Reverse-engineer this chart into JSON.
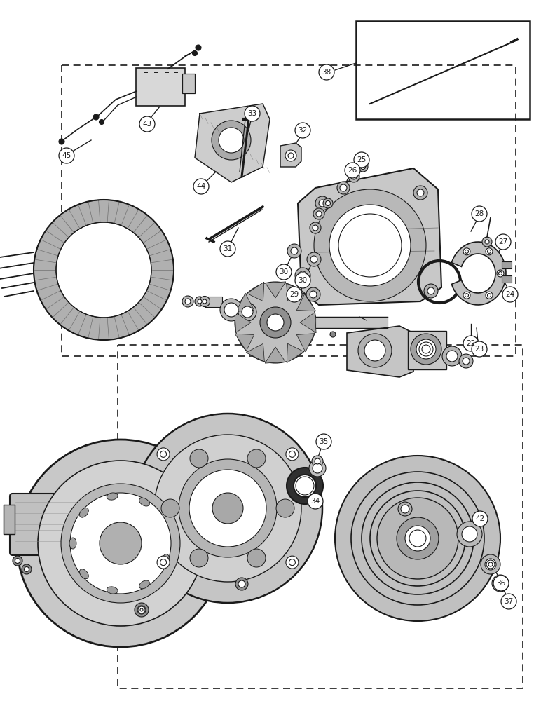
{
  "bg_color": "#ffffff",
  "line_color": "#1a1a1a",
  "fig_width": 7.72,
  "fig_height": 10.0,
  "dpi": 100,
  "lw": 1.2
}
